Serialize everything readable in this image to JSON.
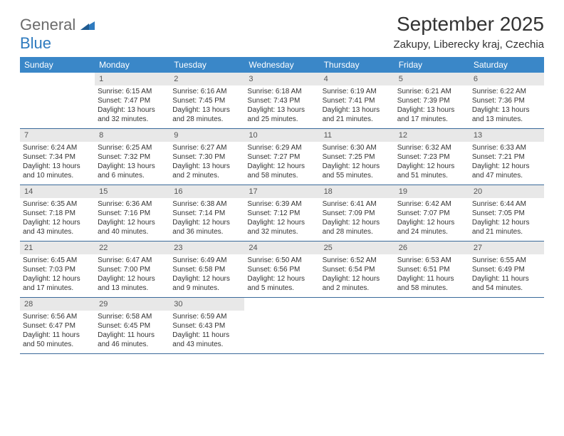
{
  "logo": {
    "text1": "General",
    "text2": "Blue"
  },
  "title": "September 2025",
  "location": "Zakupy, Liberecky kraj, Czechia",
  "colors": {
    "header_bg": "#3a87c8",
    "header_text": "#ffffff",
    "daynum_bg": "#e8e8e8",
    "week_border": "#3a6a9a",
    "logo_gray": "#6b6b6b",
    "logo_blue": "#2f7bbf"
  },
  "day_names": [
    "Sunday",
    "Monday",
    "Tuesday",
    "Wednesday",
    "Thursday",
    "Friday",
    "Saturday"
  ],
  "weeks": [
    [
      {
        "empty": true
      },
      {
        "n": "1",
        "sr": "Sunrise: 6:15 AM",
        "ss": "Sunset: 7:47 PM",
        "d1": "Daylight: 13 hours",
        "d2": "and 32 minutes."
      },
      {
        "n": "2",
        "sr": "Sunrise: 6:16 AM",
        "ss": "Sunset: 7:45 PM",
        "d1": "Daylight: 13 hours",
        "d2": "and 28 minutes."
      },
      {
        "n": "3",
        "sr": "Sunrise: 6:18 AM",
        "ss": "Sunset: 7:43 PM",
        "d1": "Daylight: 13 hours",
        "d2": "and 25 minutes."
      },
      {
        "n": "4",
        "sr": "Sunrise: 6:19 AM",
        "ss": "Sunset: 7:41 PM",
        "d1": "Daylight: 13 hours",
        "d2": "and 21 minutes."
      },
      {
        "n": "5",
        "sr": "Sunrise: 6:21 AM",
        "ss": "Sunset: 7:39 PM",
        "d1": "Daylight: 13 hours",
        "d2": "and 17 minutes."
      },
      {
        "n": "6",
        "sr": "Sunrise: 6:22 AM",
        "ss": "Sunset: 7:36 PM",
        "d1": "Daylight: 13 hours",
        "d2": "and 13 minutes."
      }
    ],
    [
      {
        "n": "7",
        "sr": "Sunrise: 6:24 AM",
        "ss": "Sunset: 7:34 PM",
        "d1": "Daylight: 13 hours",
        "d2": "and 10 minutes."
      },
      {
        "n": "8",
        "sr": "Sunrise: 6:25 AM",
        "ss": "Sunset: 7:32 PM",
        "d1": "Daylight: 13 hours",
        "d2": "and 6 minutes."
      },
      {
        "n": "9",
        "sr": "Sunrise: 6:27 AM",
        "ss": "Sunset: 7:30 PM",
        "d1": "Daylight: 13 hours",
        "d2": "and 2 minutes."
      },
      {
        "n": "10",
        "sr": "Sunrise: 6:29 AM",
        "ss": "Sunset: 7:27 PM",
        "d1": "Daylight: 12 hours",
        "d2": "and 58 minutes."
      },
      {
        "n": "11",
        "sr": "Sunrise: 6:30 AM",
        "ss": "Sunset: 7:25 PM",
        "d1": "Daylight: 12 hours",
        "d2": "and 55 minutes."
      },
      {
        "n": "12",
        "sr": "Sunrise: 6:32 AM",
        "ss": "Sunset: 7:23 PM",
        "d1": "Daylight: 12 hours",
        "d2": "and 51 minutes."
      },
      {
        "n": "13",
        "sr": "Sunrise: 6:33 AM",
        "ss": "Sunset: 7:21 PM",
        "d1": "Daylight: 12 hours",
        "d2": "and 47 minutes."
      }
    ],
    [
      {
        "n": "14",
        "sr": "Sunrise: 6:35 AM",
        "ss": "Sunset: 7:18 PM",
        "d1": "Daylight: 12 hours",
        "d2": "and 43 minutes."
      },
      {
        "n": "15",
        "sr": "Sunrise: 6:36 AM",
        "ss": "Sunset: 7:16 PM",
        "d1": "Daylight: 12 hours",
        "d2": "and 40 minutes."
      },
      {
        "n": "16",
        "sr": "Sunrise: 6:38 AM",
        "ss": "Sunset: 7:14 PM",
        "d1": "Daylight: 12 hours",
        "d2": "and 36 minutes."
      },
      {
        "n": "17",
        "sr": "Sunrise: 6:39 AM",
        "ss": "Sunset: 7:12 PM",
        "d1": "Daylight: 12 hours",
        "d2": "and 32 minutes."
      },
      {
        "n": "18",
        "sr": "Sunrise: 6:41 AM",
        "ss": "Sunset: 7:09 PM",
        "d1": "Daylight: 12 hours",
        "d2": "and 28 minutes."
      },
      {
        "n": "19",
        "sr": "Sunrise: 6:42 AM",
        "ss": "Sunset: 7:07 PM",
        "d1": "Daylight: 12 hours",
        "d2": "and 24 minutes."
      },
      {
        "n": "20",
        "sr": "Sunrise: 6:44 AM",
        "ss": "Sunset: 7:05 PM",
        "d1": "Daylight: 12 hours",
        "d2": "and 21 minutes."
      }
    ],
    [
      {
        "n": "21",
        "sr": "Sunrise: 6:45 AM",
        "ss": "Sunset: 7:03 PM",
        "d1": "Daylight: 12 hours",
        "d2": "and 17 minutes."
      },
      {
        "n": "22",
        "sr": "Sunrise: 6:47 AM",
        "ss": "Sunset: 7:00 PM",
        "d1": "Daylight: 12 hours",
        "d2": "and 13 minutes."
      },
      {
        "n": "23",
        "sr": "Sunrise: 6:49 AM",
        "ss": "Sunset: 6:58 PM",
        "d1": "Daylight: 12 hours",
        "d2": "and 9 minutes."
      },
      {
        "n": "24",
        "sr": "Sunrise: 6:50 AM",
        "ss": "Sunset: 6:56 PM",
        "d1": "Daylight: 12 hours",
        "d2": "and 5 minutes."
      },
      {
        "n": "25",
        "sr": "Sunrise: 6:52 AM",
        "ss": "Sunset: 6:54 PM",
        "d1": "Daylight: 12 hours",
        "d2": "and 2 minutes."
      },
      {
        "n": "26",
        "sr": "Sunrise: 6:53 AM",
        "ss": "Sunset: 6:51 PM",
        "d1": "Daylight: 11 hours",
        "d2": "and 58 minutes."
      },
      {
        "n": "27",
        "sr": "Sunrise: 6:55 AM",
        "ss": "Sunset: 6:49 PM",
        "d1": "Daylight: 11 hours",
        "d2": "and 54 minutes."
      }
    ],
    [
      {
        "n": "28",
        "sr": "Sunrise: 6:56 AM",
        "ss": "Sunset: 6:47 PM",
        "d1": "Daylight: 11 hours",
        "d2": "and 50 minutes."
      },
      {
        "n": "29",
        "sr": "Sunrise: 6:58 AM",
        "ss": "Sunset: 6:45 PM",
        "d1": "Daylight: 11 hours",
        "d2": "and 46 minutes."
      },
      {
        "n": "30",
        "sr": "Sunrise: 6:59 AM",
        "ss": "Sunset: 6:43 PM",
        "d1": "Daylight: 11 hours",
        "d2": "and 43 minutes."
      },
      {
        "empty": true
      },
      {
        "empty": true
      },
      {
        "empty": true
      },
      {
        "empty": true
      }
    ]
  ]
}
